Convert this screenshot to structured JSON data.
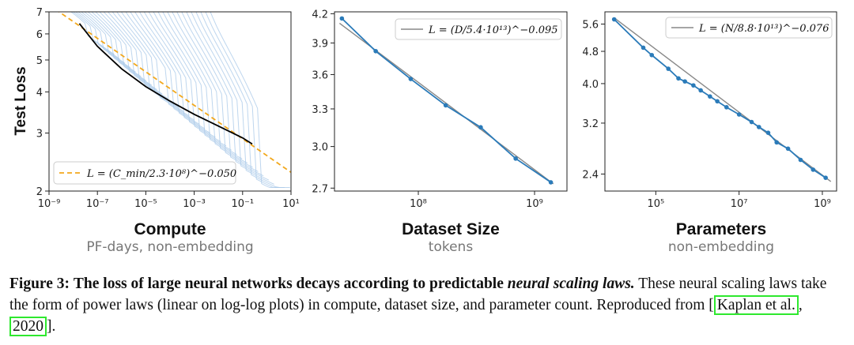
{
  "chart_data": [
    {
      "type": "line",
      "xlabel": "Compute",
      "xsublabel": "PF-days, non-embedding",
      "ylabel": "Test Loss",
      "xscale": "log",
      "yscale": "log",
      "xlim": [
        1e-09,
        10
      ],
      "ylim": [
        2,
        7
      ],
      "xticks": [
        "10⁻⁹",
        "10⁻⁷",
        "10⁻⁵",
        "10⁻³",
        "10⁻¹",
        "10¹"
      ],
      "yticks": [
        "2",
        "3",
        "4",
        "5",
        "6",
        "7"
      ],
      "legend": "L = (C_min/2.3·10⁸)^−0.050",
      "legend_position": "bottom-left",
      "fit": {
        "x": [
          1e-09,
          10
        ],
        "y": [
          7.35,
          2.28
        ]
      },
      "frontier": {
        "x": [
          1.8e-08,
          1e-07,
          1e-06,
          1e-05,
          0.0001,
          0.001,
          0.01,
          0.1,
          0.25
        ],
        "y": [
          6.45,
          5.5,
          4.7,
          4.15,
          3.75,
          3.42,
          3.15,
          2.9,
          2.78
        ]
      }
    },
    {
      "type": "line",
      "xlabel": "Dataset Size",
      "xsublabel": "tokens",
      "xscale": "log",
      "yscale": "log",
      "xlim": [
        19000000.0,
        1900000000.0
      ],
      "ylim": [
        2.68,
        4.22
      ],
      "xticks": [
        "10⁸",
        "10⁹"
      ],
      "yticks": [
        "2.7",
        "3.0",
        "3.3",
        "3.6",
        "3.9",
        "4.2"
      ],
      "legend": "L = (D/5.4·10¹³)^−0.095",
      "legend_position": "top-right",
      "x": [
        22000000.0,
        43000000.0,
        86000000.0,
        172000000.0,
        344000000.0,
        688000000.0,
        1380000000.0
      ],
      "y": [
        4.15,
        3.82,
        3.56,
        3.33,
        3.15,
        2.91,
        2.74
      ],
      "fit": {
        "x": [
          21000000.0,
          1450000000.0
        ],
        "y": [
          4.1,
          2.73
        ]
      }
    },
    {
      "type": "line",
      "xlabel": "Parameters",
      "xsublabel": "non-embedding",
      "xscale": "log",
      "yscale": "log",
      "xlim": [
        6000.0,
        2200000000.0
      ],
      "ylim": [
        2.18,
        6.0
      ],
      "xticks": [
        "10⁵",
        "10⁷",
        "10⁹"
      ],
      "yticks": [
        "2.4",
        "3.2",
        "4.0",
        "4.8",
        "5.6"
      ],
      "legend": "L = (N/8.8·10¹³)^−0.076",
      "legend_position": "top-right",
      "x": [
        10000.0,
        50000.0,
        80000.0,
        200000.0,
        350000.0,
        500000.0,
        800000.0,
        1200000.0,
        2000000.0,
        3000000.0,
        5000000.0,
        10000000.0,
        20000000.0,
        30000000.0,
        50000000.0,
        80000000.0,
        150000000.0,
        300000000.0,
        600000000.0,
        1200000000.0
      ],
      "y": [
        5.75,
        4.9,
        4.7,
        4.35,
        4.12,
        4.05,
        3.96,
        3.85,
        3.72,
        3.62,
        3.5,
        3.36,
        3.22,
        3.13,
        3.03,
        2.87,
        2.77,
        2.6,
        2.46,
        2.35
      ],
      "fit": {
        "x": [
          10000.0,
          1600000000.0
        ],
        "y": [
          5.8,
          2.3
        ]
      }
    }
  ],
  "caption": {
    "label": "Figure 3:",
    "bold_a": "The loss of large neural networks decays according to predictable",
    "bold_italic": "neural scaling laws.",
    "text": "These neural scaling laws take the form of power laws (linear on log-log plots) in compute, dataset size, and parameter count. Reproduced from [",
    "cite_author": "Kaplan et al.",
    "sep": ", ",
    "cite_year": "2020",
    "end": "]."
  },
  "colors": {
    "main_line": "#2b7bb9",
    "fit_line": "#888888",
    "dash_fit": "#f2a81d",
    "curves": "#a8c8e8",
    "frontier": "#000000"
  }
}
